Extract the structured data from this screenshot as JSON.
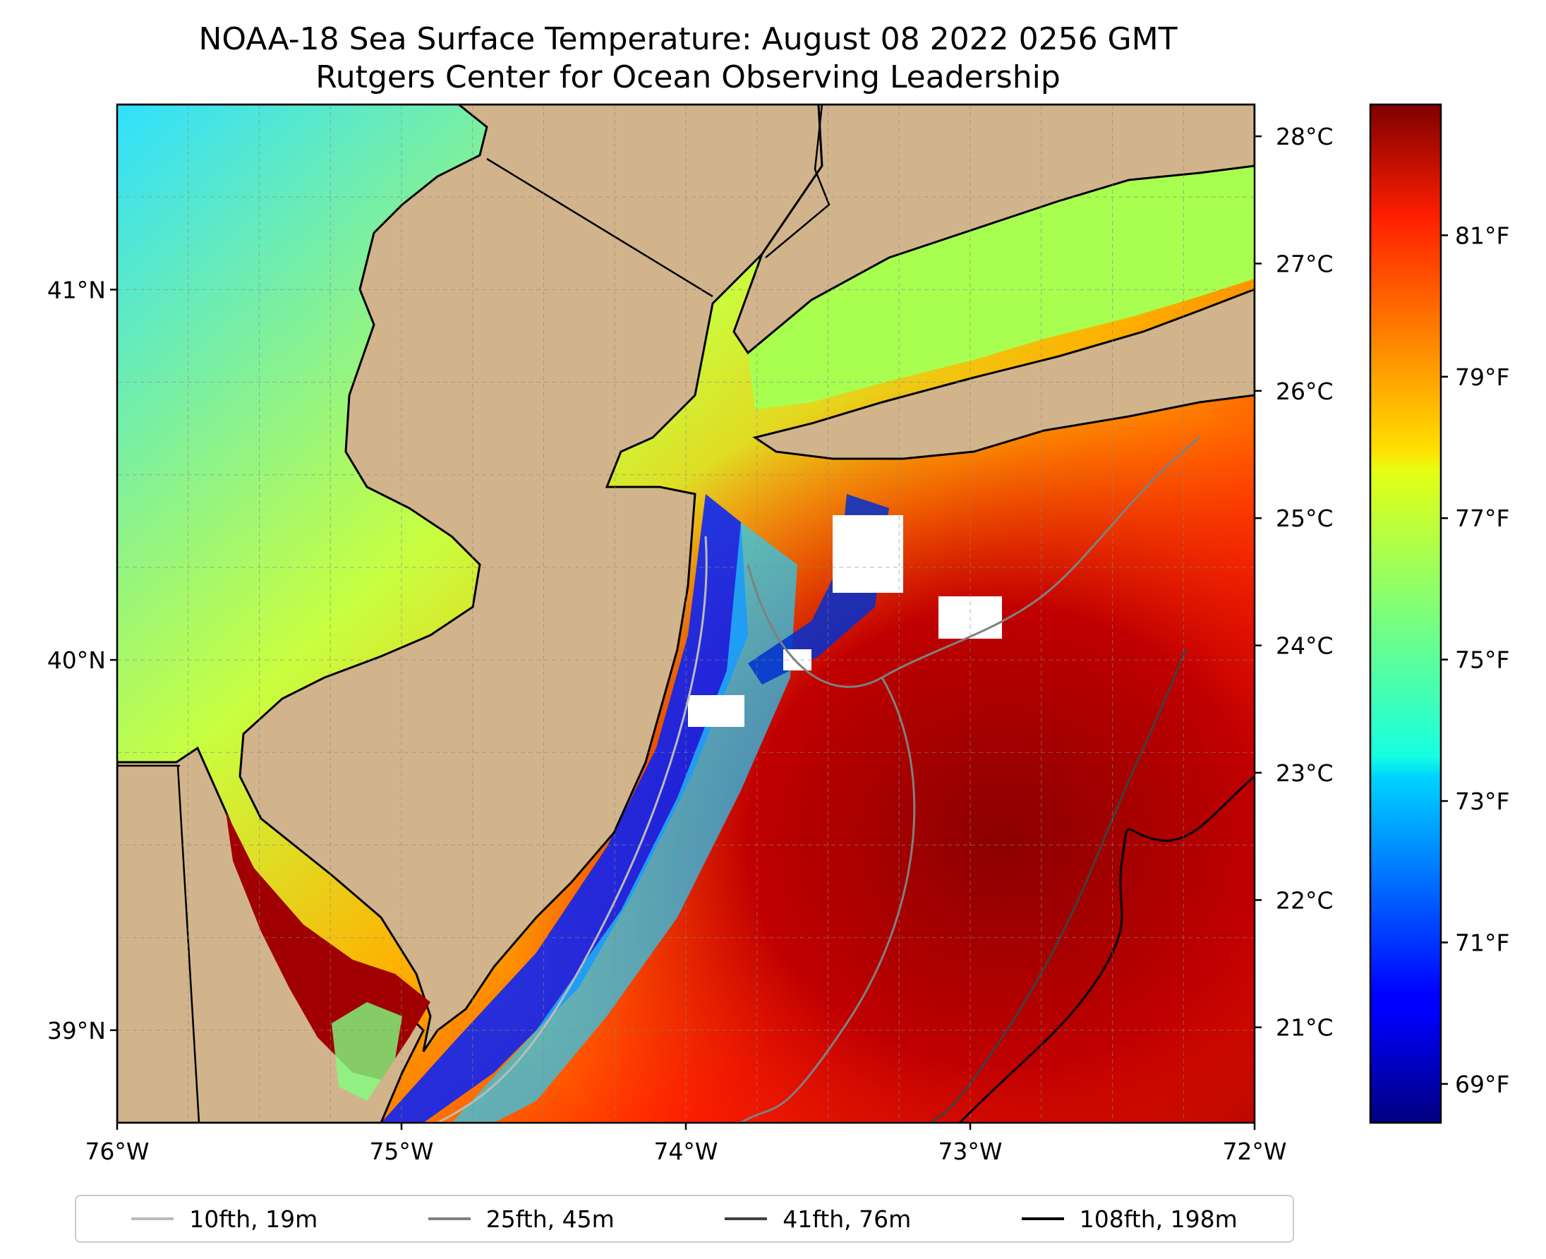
{
  "title": {
    "line1": "NOAA-18 Sea Surface Temperature: August 08 2022 0256 GMT",
    "line2": "Rutgers Center for Ocean Observing Leadership"
  },
  "map": {
    "lon_range": [
      -76,
      -72
    ],
    "lat_range": [
      38.75,
      41.5
    ],
    "lon_ticks": [
      {
        "value": -76,
        "label": "76°W"
      },
      {
        "value": -75,
        "label": "75°W"
      },
      {
        "value": -74,
        "label": "74°W"
      },
      {
        "value": -73,
        "label": "73°W"
      },
      {
        "value": -72,
        "label": "72°W"
      }
    ],
    "lat_ticks": [
      {
        "value": 41,
        "label": "41°N"
      },
      {
        "value": 40,
        "label": "40°N"
      },
      {
        "value": 39,
        "label": "39°N"
      }
    ],
    "land_color": "#D2B48C",
    "gridlines": true
  },
  "colorbar": {
    "colormap": "jet",
    "celsius_ticks": [
      "28°C",
      "27°C",
      "26°C",
      "25°C",
      "24°C",
      "23°C",
      "22°C",
      "21°C"
    ],
    "celsius_values": [
      28,
      27,
      26,
      25,
      24,
      23,
      22,
      21
    ],
    "fahrenheit_ticks": [
      "81°F",
      "79°F",
      "77°F",
      "75°F",
      "73°F",
      "71°F",
      "69°F"
    ],
    "fahrenheit_values": [
      81,
      79,
      77,
      75,
      73,
      71,
      69
    ],
    "range_celsius": [
      20.25,
      28.25
    ]
  },
  "legend": {
    "items": [
      {
        "label": "10fth, 19m",
        "color": "#bbbbbb"
      },
      {
        "label": "25fth, 45m",
        "color": "#808080"
      },
      {
        "label": "41fth, 76m",
        "color": "#404040"
      },
      {
        "label": "108fth, 198m",
        "color": "#000000"
      }
    ]
  }
}
